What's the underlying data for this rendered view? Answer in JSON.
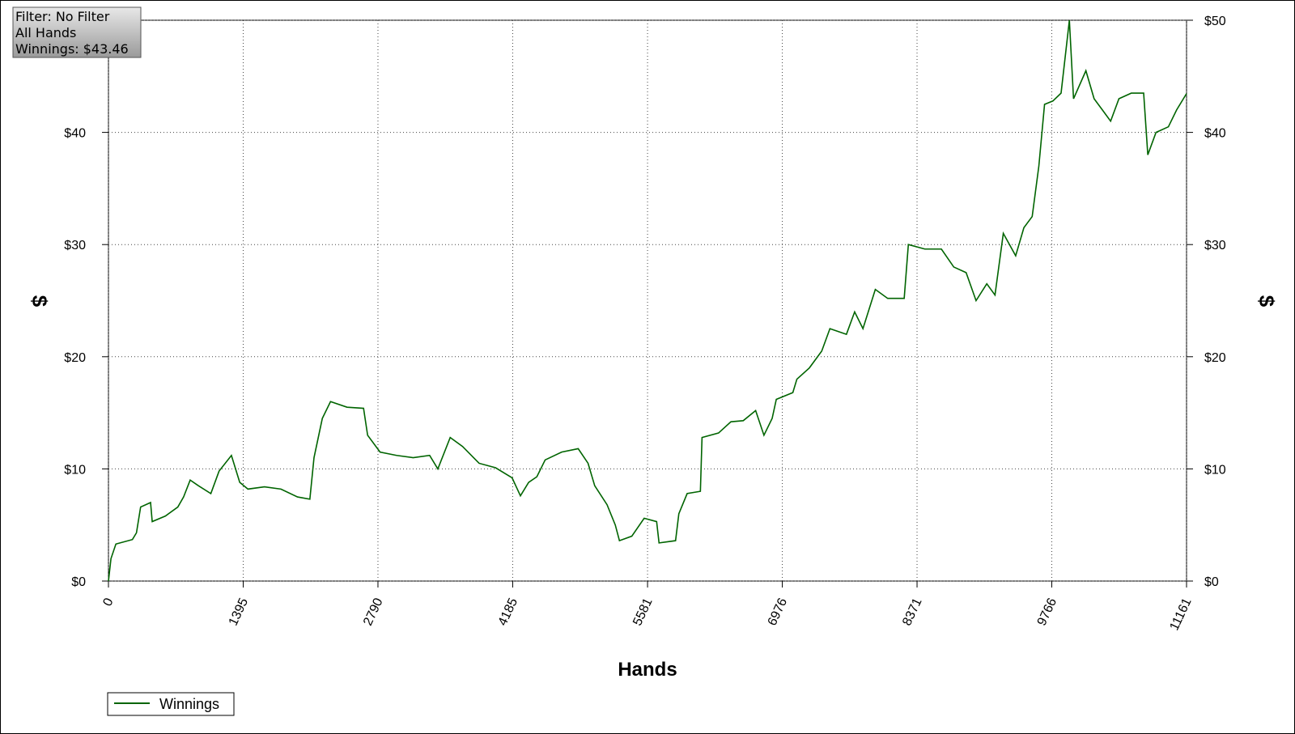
{
  "chart_data": {
    "type": "line",
    "info": [
      "Filter: No Filter",
      "All Hands",
      "Winnings: $43.46"
    ],
    "xlabel": "Hands",
    "ylabel": "$",
    "y2label": "$",
    "x": [
      0,
      26,
      77,
      248,
      290,
      333,
      436,
      453,
      590,
      718,
      778,
      846,
      931,
      1060,
      1145,
      1273,
      1359,
      1444,
      1615,
      1786,
      1957,
      2085,
      2128,
      2214,
      2299,
      2470,
      2641,
      2683,
      2812,
      2983,
      3154,
      3325,
      3410,
      3538,
      3666,
      3837,
      4008,
      4179,
      4265,
      4350,
      4435,
      4521,
      4692,
      4863,
      4965,
      5034,
      5162,
      5247,
      5290,
      5418,
      5546,
      5675,
      5700,
      5871,
      5905,
      5991,
      6128,
      6145,
      6316,
      6444,
      6572,
      6700,
      6786,
      6871,
      6914,
      7085,
      7127,
      7256,
      7384,
      7469,
      7640,
      7725,
      7811,
      7939,
      8067,
      8238,
      8281,
      8452,
      8623,
      8751,
      8879,
      8982,
      9093,
      9178,
      9264,
      9392,
      9477,
      9563,
      9632,
      9691,
      9777,
      9862,
      9948,
      9991,
      10119,
      10204,
      10290,
      10375,
      10461,
      10589,
      10717,
      10760,
      10845,
      10973,
      11058,
      11161
    ],
    "series": [
      {
        "name": "Winnings",
        "color": "#006400",
        "values": [
          0,
          2,
          3.3,
          3.7,
          4.3,
          6.6,
          7,
          5.3,
          5.8,
          6.6,
          7.5,
          9,
          8.5,
          7.8,
          9.8,
          11.2,
          8.8,
          8.2,
          8.4,
          8.2,
          7.5,
          7.3,
          11,
          14.5,
          16,
          15.5,
          15.4,
          13,
          11.5,
          11.2,
          11,
          11.2,
          10,
          12.8,
          12,
          10.5,
          10.1,
          9.2,
          7.6,
          8.8,
          9.3,
          10.8,
          11.5,
          11.8,
          10.5,
          8.5,
          6.8,
          5,
          3.6,
          4,
          5.6,
          5.3,
          3.4,
          3.6,
          6,
          7.8,
          8,
          12.8,
          13.2,
          14.2,
          14.3,
          15.2,
          13,
          14.5,
          16.2,
          16.8,
          18,
          19,
          20.5,
          22.5,
          22,
          24,
          22.5,
          26,
          25.2,
          25.2,
          30,
          29.6,
          29.6,
          28,
          27.5,
          25,
          26.5,
          25.5,
          31,
          29,
          31.5,
          32.5,
          37,
          42.5,
          42.8,
          43.5,
          50,
          43,
          45.5,
          43,
          42,
          41,
          43,
          43.5,
          43.5,
          38,
          40,
          40.5,
          42,
          43.46
        ]
      }
    ],
    "xlim": [
      0,
      11161
    ],
    "xticks": [
      0,
      1395,
      2790,
      4185,
      5581,
      6976,
      8371,
      9766,
      11161
    ],
    "ylim": [
      0,
      50
    ],
    "yticks": [
      {
        "value": 0,
        "label": "$0"
      },
      {
        "value": 10,
        "label": "$10"
      },
      {
        "value": 20,
        "label": "$20"
      },
      {
        "value": 30,
        "label": "$30"
      },
      {
        "value": 40,
        "label": "$40"
      },
      {
        "value": 50,
        "label": "$50"
      }
    ],
    "y2lim": [
      0,
      50
    ],
    "y2ticks": [
      {
        "value": 0,
        "label": "$0"
      },
      {
        "value": 10,
        "label": "$10"
      },
      {
        "value": 20,
        "label": "$20"
      },
      {
        "value": 30,
        "label": "$30"
      },
      {
        "value": 40,
        "label": "$40"
      },
      {
        "value": 50,
        "label": "$50"
      }
    ],
    "grid": true,
    "legend": "bottom-left"
  }
}
